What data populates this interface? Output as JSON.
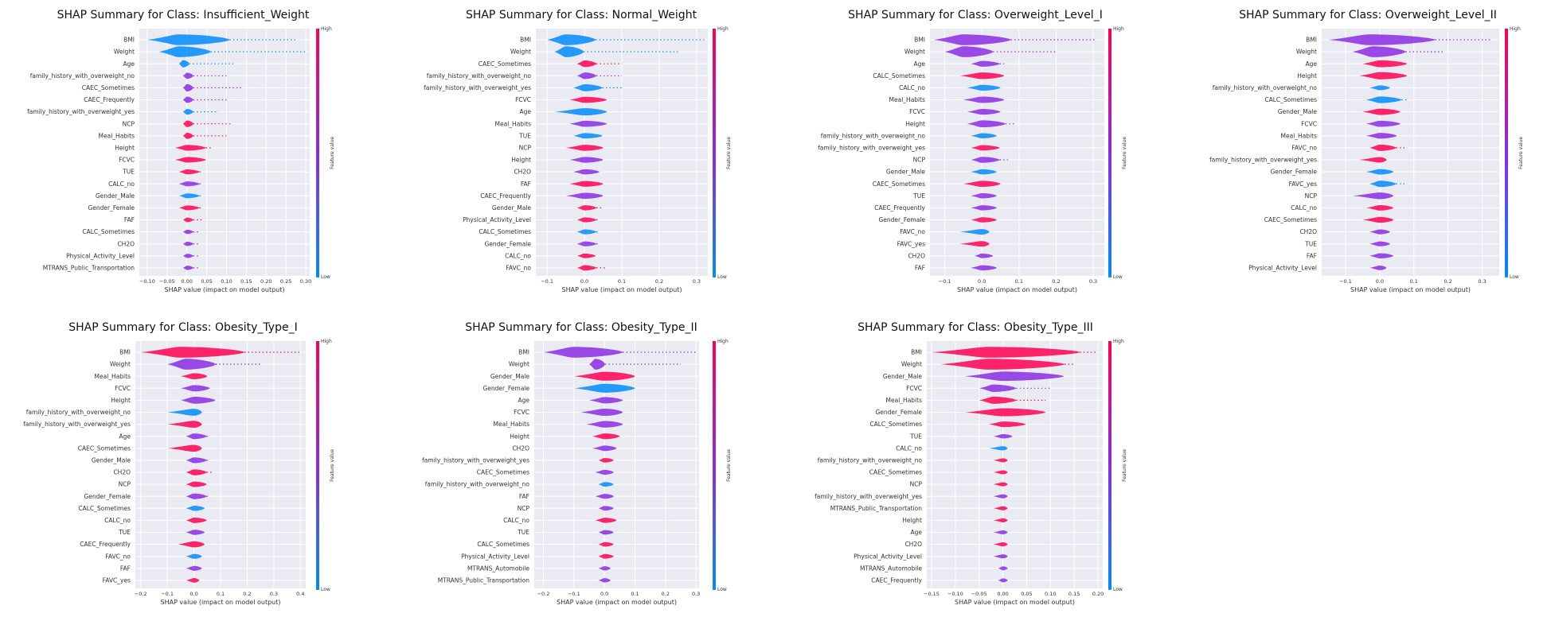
{
  "figure": {
    "colors": {
      "high": "#ff0052",
      "low": "#008bfb",
      "mid": "#8a2be2",
      "axes_bg": "#eaeaf2",
      "grid": "#ffffff"
    }
  },
  "chart_data": [
    {
      "type": "violin",
      "title": "SHAP Summary for Class: Insufficient_Weight",
      "xlabel": "SHAP value (impact on model output)",
      "xlim": [
        -0.12,
        0.31
      ],
      "xticks": [
        -0.1,
        -0.05,
        0.0,
        0.05,
        0.1,
        0.15,
        0.2,
        0.25,
        0.3
      ],
      "xtick_labels": [
        "−0.10",
        "−0.05",
        "0.00",
        "0.05",
        "0.10",
        "0.15",
        "0.20",
        "0.25",
        "0.30"
      ],
      "colorbar": {
        "high": "High",
        "low": "Low",
        "label": "Feature value"
      },
      "features": [
        "BMI",
        "Weight",
        "Age",
        "family_history_with_overweight_no",
        "CAEC_Sometimes",
        "CAEC_Frequently",
        "family_history_with_overweight_yes",
        "NCP",
        "Meal_Habits",
        "Height",
        "FCVC",
        "TUE",
        "CALC_no",
        "Gender_Male",
        "Gender_Female",
        "FAF",
        "CALC_Sometimes",
        "CH2O",
        "Physical_Activity_Level",
        "MTRANS_Public_Transportation"
      ],
      "min": [
        -0.1,
        -0.07,
        -0.02,
        -0.01,
        -0.01,
        -0.01,
        -0.01,
        -0.01,
        -0.01,
        -0.03,
        -0.03,
        -0.02,
        -0.02,
        -0.02,
        -0.02,
        -0.01,
        -0.01,
        -0.01,
        -0.01,
        -0.01
      ],
      "max": [
        0.28,
        0.3,
        0.12,
        0.1,
        0.14,
        0.1,
        0.08,
        0.11,
        0.1,
        0.06,
        0.05,
        0.04,
        0.04,
        0.04,
        0.04,
        0.04,
        0.03,
        0.03,
        0.03,
        0.03
      ],
      "peak": [
        -0.02,
        -0.02,
        -0.01,
        0.0,
        0.0,
        0.0,
        0.0,
        0.0,
        0.0,
        0.0,
        0.0,
        0.0,
        0.0,
        0.0,
        0.0,
        0.0,
        0.0,
        0.0,
        0.0,
        0.0
      ],
      "color": [
        "low",
        "low",
        "low",
        "mid",
        "mid",
        "mid",
        "low",
        "high",
        "high",
        "high",
        "high",
        "high",
        "mid",
        "low",
        "high",
        "high",
        "mid",
        "mid",
        "mid",
        "mid"
      ]
    },
    {
      "type": "violin",
      "title": "SHAP Summary for Class: Normal_Weight",
      "xlabel": "SHAP value (impact on model output)",
      "xlim": [
        -0.13,
        0.33
      ],
      "xticks": [
        -0.1,
        0.0,
        0.1,
        0.2,
        0.3
      ],
      "xtick_labels": [
        "−0.1",
        "0.0",
        "0.1",
        "0.2",
        "0.3"
      ],
      "colorbar": {
        "high": "High",
        "low": "Low",
        "label": "Feature value"
      },
      "features": [
        "BMI",
        "Weight",
        "CAEC_Sometimes",
        "family_history_with_overweight_no",
        "family_history_with_overweight_yes",
        "FCVC",
        "Age",
        "Meal_Habits",
        "TUE",
        "NCP",
        "Height",
        "CH2O",
        "FAF",
        "CAEC_Frequently",
        "Gender_Male",
        "Physical_Activity_Level",
        "CALC_Sometimes",
        "Gender_Female",
        "CALC_no",
        "FAVC_no"
      ],
      "min": [
        -0.1,
        -0.08,
        -0.02,
        -0.02,
        -0.03,
        -0.04,
        -0.08,
        -0.04,
        -0.03,
        -0.05,
        -0.04,
        -0.03,
        -0.04,
        -0.05,
        -0.02,
        -0.02,
        -0.02,
        -0.02,
        -0.02,
        -0.02
      ],
      "max": [
        0.32,
        0.25,
        0.1,
        0.1,
        0.1,
        0.06,
        0.06,
        0.06,
        0.05,
        0.05,
        0.05,
        0.04,
        0.05,
        0.05,
        0.05,
        0.04,
        0.04,
        0.04,
        0.03,
        0.06
      ],
      "peak": [
        -0.05,
        -0.05,
        0.0,
        0.0,
        0.0,
        0.0,
        0.0,
        0.0,
        0.0,
        0.0,
        0.0,
        0.0,
        0.0,
        0.0,
        0.0,
        0.0,
        0.0,
        0.0,
        0.0,
        0.0
      ],
      "color": [
        "low",
        "low",
        "high",
        "mid",
        "low",
        "high",
        "low",
        "mid",
        "low",
        "high",
        "mid",
        "mid",
        "high",
        "mid",
        "high",
        "high",
        "low",
        "mid",
        "high",
        "high"
      ]
    },
    {
      "type": "violin",
      "title": "SHAP Summary for Class: Overweight_Level_I",
      "xlabel": "SHAP value (impact on model output)",
      "xlim": [
        -0.14,
        0.33
      ],
      "xticks": [
        -0.1,
        0.0,
        0.1,
        0.2,
        0.3
      ],
      "xtick_labels": [
        "−0.1",
        "0.0",
        "0.1",
        "0.2",
        "0.3"
      ],
      "colorbar": {
        "high": "High",
        "low": "Low",
        "label": "Feature value"
      },
      "features": [
        "BMI",
        "Weight",
        "Age",
        "CALC_Sometimes",
        "CALC_no",
        "Meal_Habits",
        "FCVC",
        "Height",
        "family_history_with_overweight_no",
        "family_history_with_overweight_yes",
        "NCP",
        "Gender_Male",
        "CAEC_Sometimes",
        "TUE",
        "CAEC_Frequently",
        "Gender_Female",
        "FAVC_no",
        "FAVC_yes",
        "CH2O",
        "FAF"
      ],
      "min": [
        -0.13,
        -0.1,
        -0.03,
        -0.06,
        -0.04,
        -0.05,
        -0.04,
        -0.04,
        -0.03,
        -0.03,
        -0.03,
        -0.03,
        -0.05,
        -0.03,
        -0.03,
        -0.03,
        -0.06,
        -0.06,
        -0.02,
        -0.03
      ],
      "max": [
        0.31,
        0.2,
        0.06,
        0.06,
        0.05,
        0.06,
        0.05,
        0.09,
        0.04,
        0.05,
        0.07,
        0.04,
        0.05,
        0.04,
        0.04,
        0.04,
        0.02,
        0.02,
        0.03,
        0.04
      ],
      "peak": [
        -0.05,
        -0.05,
        0.0,
        0.0,
        0.0,
        0.0,
        0.0,
        0.0,
        0.0,
        0.0,
        0.0,
        0.0,
        0.0,
        0.0,
        0.0,
        0.0,
        0.0,
        0.0,
        0.0,
        0.0
      ],
      "color": [
        "mid",
        "mid",
        "mid",
        "high",
        "low",
        "mid",
        "mid",
        "mid",
        "low",
        "high",
        "mid",
        "low",
        "high",
        "mid",
        "mid",
        "high",
        "low",
        "high",
        "mid",
        "mid"
      ]
    },
    {
      "type": "violin",
      "title": "SHAP Summary for Class: Overweight_Level_II",
      "xlabel": "SHAP value (impact on model output)",
      "xlim": [
        -0.17,
        0.35
      ],
      "xticks": [
        -0.1,
        0.0,
        0.1,
        0.2,
        0.3
      ],
      "xtick_labels": [
        "−0.1",
        "0.0",
        "0.1",
        "0.2",
        "0.3"
      ],
      "colorbar": {
        "high": "High",
        "low": "Low",
        "label": "Feature value"
      },
      "features": [
        "BMI",
        "Weight",
        "Age",
        "Height",
        "family_history_with_overweight_no",
        "CALC_Sometimes",
        "Gender_Male",
        "FCVC",
        "Meal_Habits",
        "FAVC_no",
        "family_history_with_overweight_yes",
        "Gender_Female",
        "FAVC_yes",
        "NCP",
        "CALC_no",
        "CAEC_Sometimes",
        "CH2O",
        "TUE",
        "FAF",
        "Physical_Activity_Level"
      ],
      "min": [
        -0.15,
        -0.08,
        -0.05,
        -0.06,
        -0.03,
        -0.04,
        -0.05,
        -0.04,
        -0.04,
        -0.03,
        -0.06,
        -0.04,
        -0.03,
        -0.08,
        -0.04,
        -0.05,
        -0.03,
        -0.03,
        -0.03,
        -0.03
      ],
      "max": [
        0.33,
        0.19,
        0.08,
        0.08,
        0.03,
        0.08,
        0.06,
        0.06,
        0.05,
        0.08,
        0.02,
        0.04,
        0.08,
        0.04,
        0.04,
        0.04,
        0.03,
        0.03,
        0.04,
        0.02
      ],
      "peak": [
        -0.03,
        -0.02,
        0.0,
        0.0,
        0.0,
        0.0,
        0.0,
        0.0,
        0.0,
        0.0,
        0.0,
        0.0,
        0.0,
        0.0,
        0.0,
        0.0,
        0.0,
        0.0,
        0.0,
        0.0
      ],
      "color": [
        "mid",
        "mid",
        "high",
        "high",
        "low",
        "low",
        "high",
        "mid",
        "mid",
        "high",
        "high",
        "low",
        "low",
        "mid",
        "high",
        "high",
        "mid",
        "mid",
        "mid",
        "mid"
      ]
    },
    {
      "type": "violin",
      "title": "SHAP Summary for Class: Obesity_Type_I",
      "xlabel": "SHAP value (impact on model output)",
      "xlim": [
        -0.22,
        0.42
      ],
      "xticks": [
        -0.2,
        -0.1,
        0.0,
        0.1,
        0.2,
        0.3,
        0.4
      ],
      "xtick_labels": [
        "−0.2",
        "−0.1",
        "0.0",
        "0.1",
        "0.2",
        "0.3",
        "0.4"
      ],
      "colorbar": {
        "high": "High",
        "low": "Low",
        "label": "Feature value"
      },
      "features": [
        "BMI",
        "Weight",
        "Meal_Habits",
        "FCVC",
        "Height",
        "family_history_with_overweight_no",
        "family_history_with_overweight_yes",
        "Age",
        "CAEC_Sometimes",
        "Gender_Male",
        "CH2O",
        "NCP",
        "Gender_Female",
        "CALC_Sometimes",
        "CALC_no",
        "TUE",
        "CAEC_Frequently",
        "FAVC_no",
        "FAF",
        "FAVC_yes"
      ],
      "min": [
        -0.2,
        -0.1,
        -0.05,
        -0.05,
        -0.05,
        -0.1,
        -0.1,
        -0.03,
        -0.1,
        -0.03,
        -0.03,
        -0.03,
        -0.03,
        -0.03,
        -0.03,
        -0.03,
        -0.06,
        -0.03,
        -0.03,
        -0.03
      ],
      "max": [
        0.4,
        0.25,
        0.05,
        0.06,
        0.08,
        0.03,
        0.03,
        0.06,
        0.03,
        0.06,
        0.07,
        0.05,
        0.06,
        0.04,
        0.05,
        0.04,
        0.04,
        0.03,
        0.03,
        0.02
      ],
      "peak": [
        -0.05,
        -0.03,
        0.0,
        0.0,
        0.0,
        0.0,
        0.0,
        0.0,
        0.0,
        0.0,
        0.0,
        0.0,
        0.0,
        0.0,
        0.0,
        0.0,
        0.0,
        0.0,
        0.0,
        0.0
      ],
      "color": [
        "high",
        "mid",
        "high",
        "mid",
        "mid",
        "low",
        "high",
        "mid",
        "high",
        "mid",
        "high",
        "high",
        "mid",
        "low",
        "high",
        "mid",
        "high",
        "low",
        "mid",
        "high"
      ]
    },
    {
      "type": "violin",
      "title": "SHAP Summary for Class: Obesity_Type_II",
      "xlabel": "SHAP value (impact on model output)",
      "xlim": [
        -0.23,
        0.31
      ],
      "xticks": [
        -0.2,
        -0.1,
        0.0,
        0.1,
        0.2,
        0.3
      ],
      "xtick_labels": [
        "−0.2",
        "−0.1",
        "0.0",
        "0.1",
        "0.2",
        "0.3"
      ],
      "colorbar": {
        "high": "High",
        "low": "Low",
        "label": "Feature value"
      },
      "features": [
        "BMI",
        "Weight",
        "Gender_Male",
        "Gender_Female",
        "Age",
        "FCVC",
        "Meal_Habits",
        "Height",
        "CH2O",
        "family_history_with_overweight_yes",
        "CAEC_Sometimes",
        "family_history_with_overweight_no",
        "FAF",
        "NCP",
        "CALC_no",
        "TUE",
        "CALC_Sometimes",
        "Physical_Activity_Level",
        "MTRANS_Automobile",
        "MTRANS_Public_Transportation"
      ],
      "min": [
        -0.2,
        -0.05,
        -0.1,
        -0.1,
        -0.05,
        -0.08,
        -0.06,
        -0.04,
        -0.04,
        -0.02,
        -0.03,
        -0.02,
        -0.03,
        -0.02,
        -0.03,
        -0.02,
        -0.02,
        -0.02,
        -0.02,
        -0.02
      ],
      "max": [
        0.3,
        0.25,
        0.1,
        0.1,
        0.06,
        0.06,
        0.06,
        0.05,
        0.04,
        0.03,
        0.03,
        0.03,
        0.03,
        0.03,
        0.04,
        0.03,
        0.03,
        0.03,
        0.02,
        0.02
      ],
      "peak": [
        -0.1,
        -0.03,
        0.0,
        0.0,
        0.0,
        0.0,
        0.0,
        0.0,
        0.0,
        0.0,
        0.0,
        0.0,
        0.0,
        0.0,
        0.0,
        0.0,
        0.0,
        0.0,
        0.0,
        0.0
      ],
      "color": [
        "mid",
        "mid",
        "high",
        "low",
        "mid",
        "mid",
        "mid",
        "high",
        "mid",
        "high",
        "mid",
        "low",
        "mid",
        "mid",
        "high",
        "mid",
        "high",
        "high",
        "mid",
        "mid"
      ]
    },
    {
      "type": "violin",
      "title": "SHAP Summary for Class: Obesity_Type_III",
      "xlabel": "SHAP value (impact on model output)",
      "xlim": [
        -0.16,
        0.21
      ],
      "xticks": [
        -0.15,
        -0.1,
        -0.05,
        0.0,
        0.05,
        0.1,
        0.15,
        0.2
      ],
      "xtick_labels": [
        "−0.15",
        "−0.10",
        "−0.05",
        "0.00",
        "0.05",
        "0.10",
        "0.15",
        "0.20"
      ],
      "colorbar": {
        "high": "High",
        "low": "Low",
        "label": "Feature value"
      },
      "features": [
        "BMI",
        "Weight",
        "Gender_Male",
        "FCVC",
        "Meal_Habits",
        "Gender_Female",
        "CALC_Sometimes",
        "TUE",
        "CALC_no",
        "family_history_with_overweight_no",
        "CAEC_Sometimes",
        "NCP",
        "family_history_with_overweight_yes",
        "MTRANS_Public_Transportation",
        "Height",
        "Age",
        "CH2O",
        "Physical_Activity_Level",
        "MTRANS_Automobile",
        "CAEC_Frequently"
      ],
      "min": [
        -0.15,
        -0.13,
        -0.08,
        -0.05,
        -0.05,
        -0.08,
        -0.03,
        -0.02,
        -0.03,
        -0.02,
        -0.02,
        -0.02,
        -0.02,
        -0.02,
        -0.02,
        -0.02,
        -0.02,
        -0.02,
        -0.01,
        -0.01
      ],
      "max": [
        0.2,
        0.15,
        0.13,
        0.1,
        0.09,
        0.09,
        0.05,
        0.02,
        0.01,
        0.01,
        0.01,
        0.01,
        0.01,
        0.01,
        0.01,
        0.01,
        0.01,
        0.01,
        0.01,
        0.01
      ],
      "peak": [
        -0.03,
        -0.03,
        0.0,
        -0.02,
        -0.02,
        0.0,
        0.0,
        0.0,
        0.0,
        0.0,
        0.0,
        0.0,
        0.0,
        0.0,
        0.0,
        0.0,
        0.0,
        0.0,
        0.0,
        0.0
      ],
      "color": [
        "high",
        "high",
        "mid",
        "mid",
        "high",
        "high",
        "high",
        "mid",
        "low",
        "high",
        "high",
        "high",
        "mid",
        "high",
        "high",
        "mid",
        "high",
        "mid",
        "mid",
        "mid"
      ]
    }
  ]
}
